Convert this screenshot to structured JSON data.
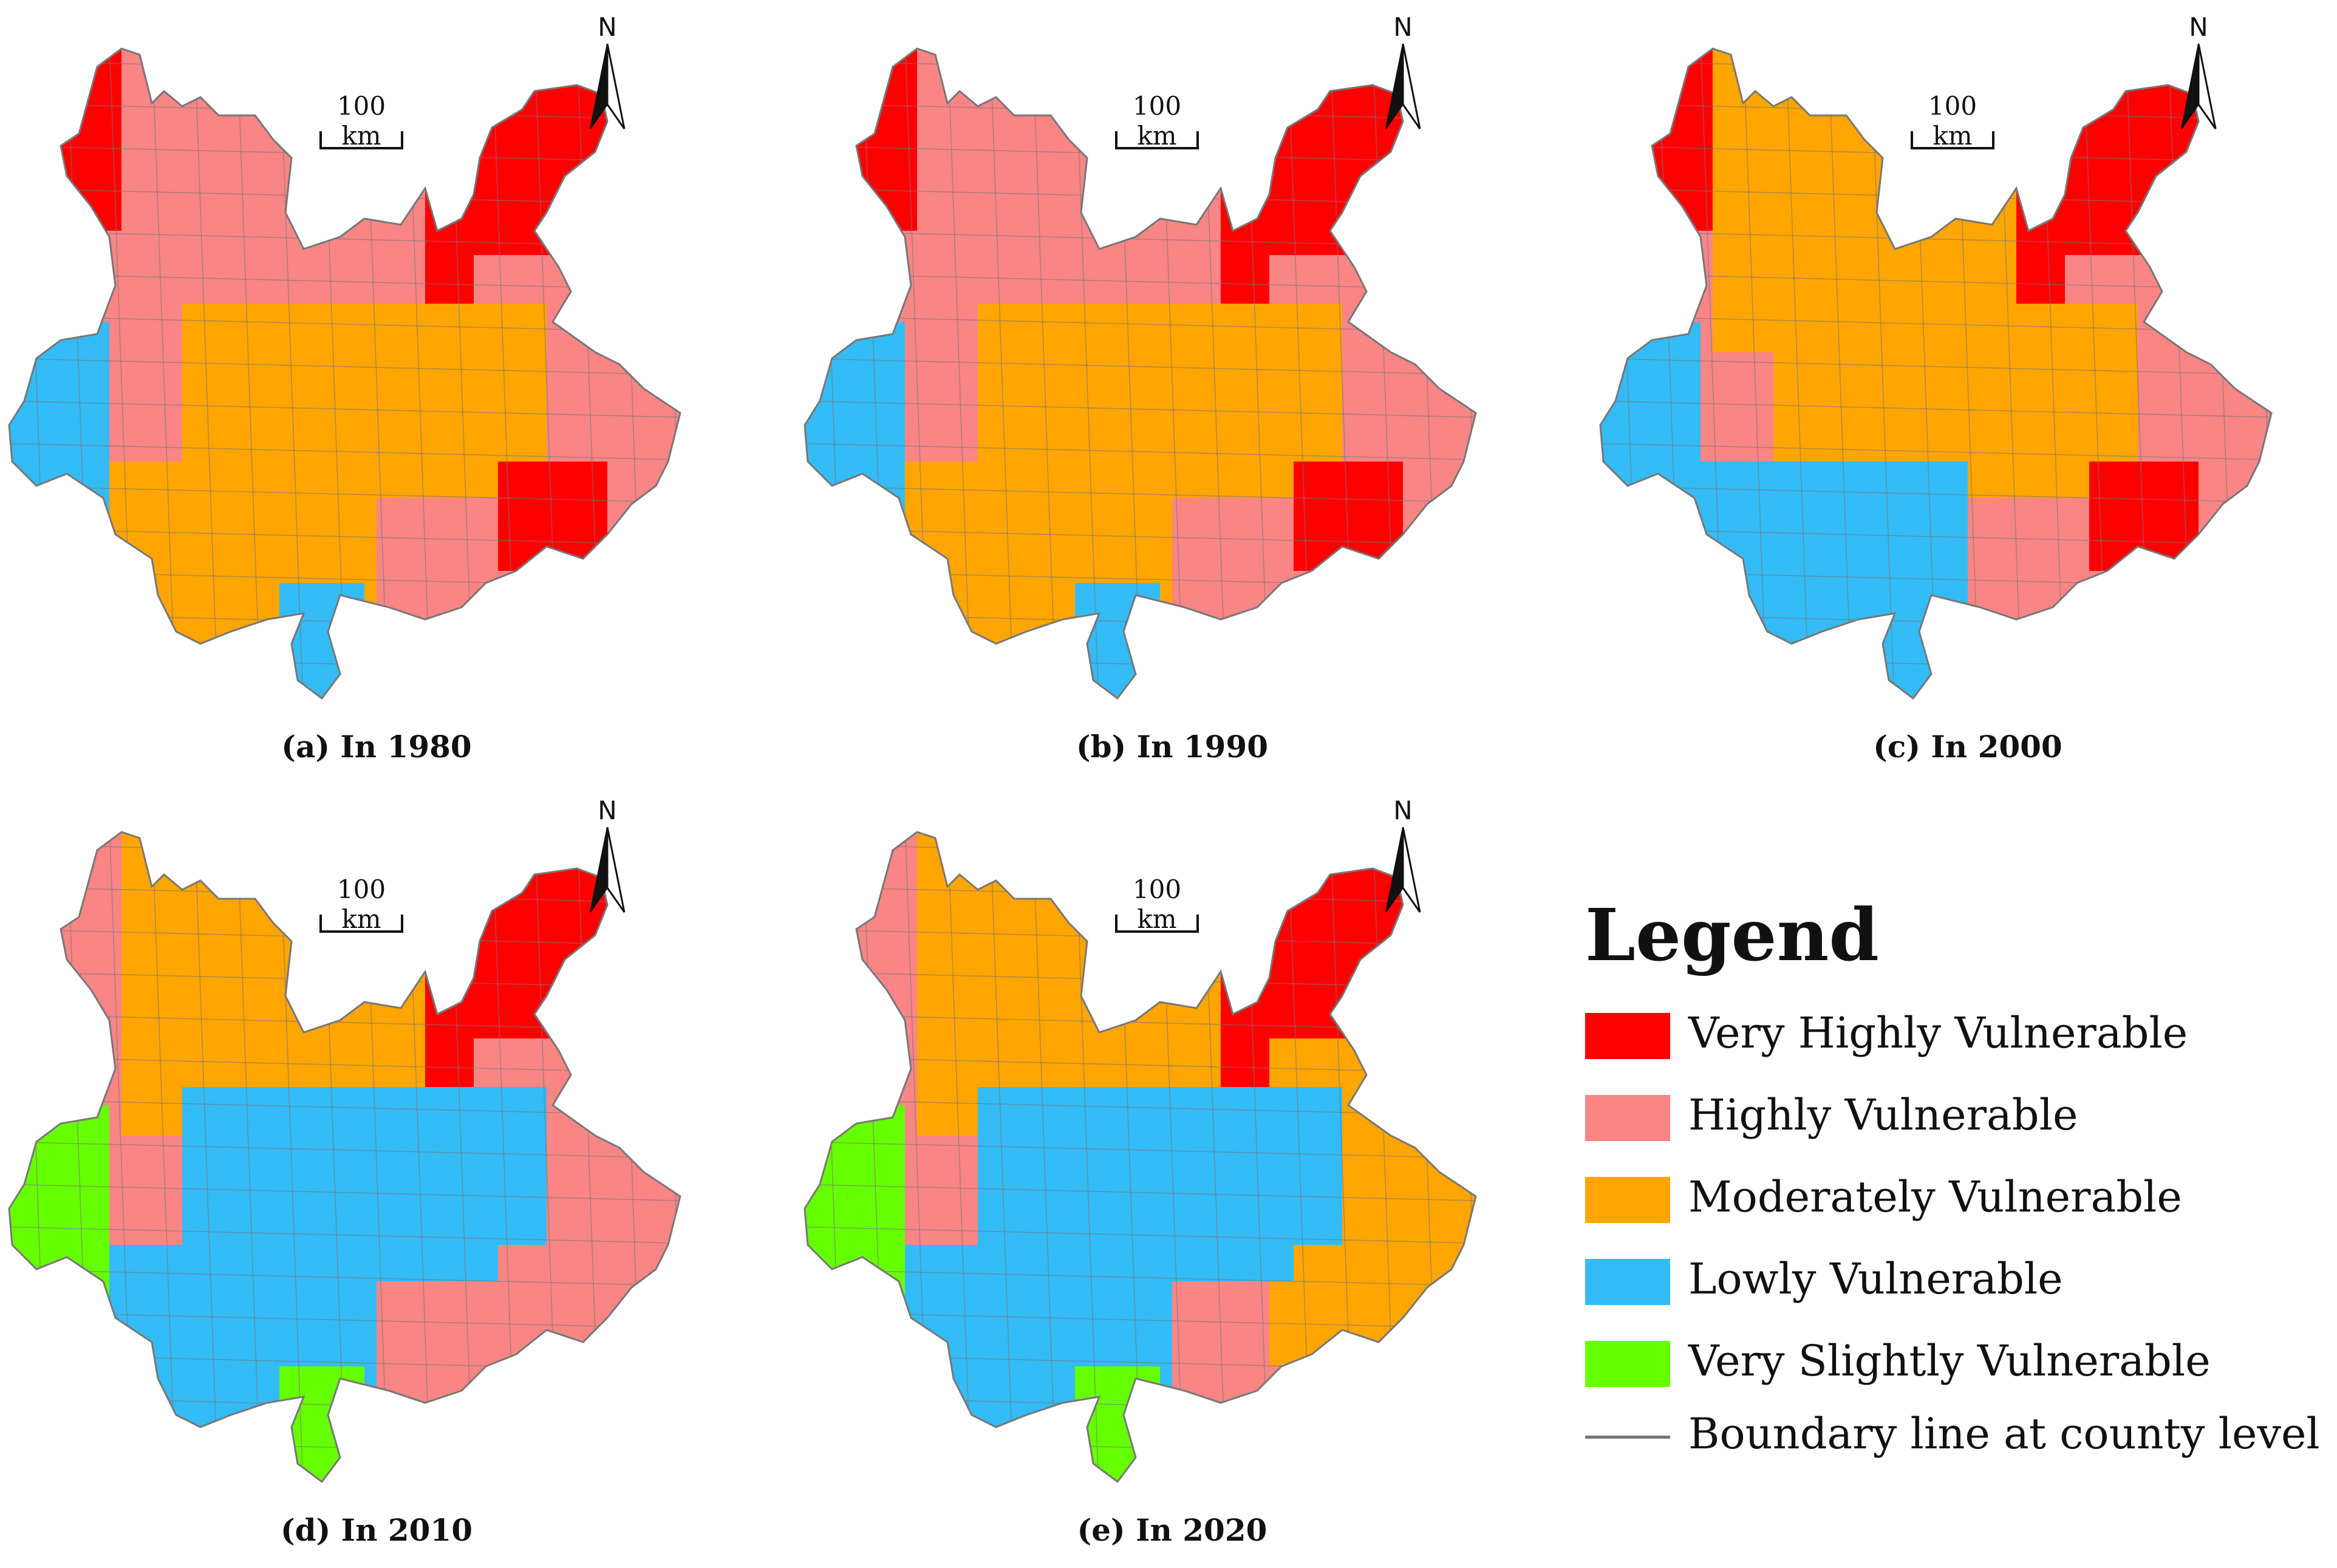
{
  "figure": {
    "panels": [
      {
        "id": "a",
        "caption": "(a) In 1980",
        "scale_label": "100 km",
        "north_label": "N"
      },
      {
        "id": "b",
        "caption": "(b) In 1990",
        "scale_label": "100 km",
        "north_label": "N"
      },
      {
        "id": "c",
        "caption": "(c) In 2000",
        "scale_label": "100 km",
        "north_label": "N"
      },
      {
        "id": "d",
        "caption": "(d) In 2010",
        "scale_label": "100 km",
        "north_label": "N"
      },
      {
        "id": "e",
        "caption": "(e) In 2020",
        "scale_label": "100 km",
        "north_label": "N"
      }
    ]
  },
  "legend": {
    "title": "Legend",
    "items": [
      {
        "label": "Very Highly Vulnerable",
        "color": "#ff0000"
      },
      {
        "label": "Highly Vulnerable",
        "color": "#f98585"
      },
      {
        "label": "Moderately Vulnerable",
        "color": "#ffa500"
      },
      {
        "label": "Lowly Vulnerable",
        "color": "#33bbf6"
      },
      {
        "label": "Very Slightly Vulnerable",
        "color": "#66ff00"
      },
      {
        "label": "Boundary line at county level",
        "color": "#777777",
        "kind": "line"
      }
    ]
  },
  "colors": {
    "very_high": "#ff0000",
    "high": "#f98585",
    "moderate": "#ffa500",
    "low": "#33bbf6",
    "very_slight": "#66ff00",
    "boundary": "#777777"
  }
}
